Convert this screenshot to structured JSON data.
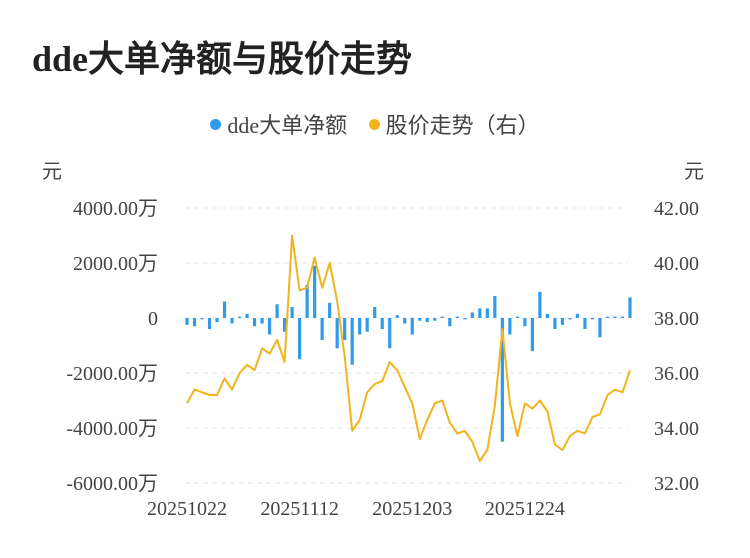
{
  "title": "dde大单净额与股价走势",
  "chart_data": {
    "type": "bar+line",
    "legend": [
      {
        "name": "dde大单净额",
        "color": "#2f9bea"
      },
      {
        "name": "股价走势（右）",
        "color": "#f2b41c"
      }
    ],
    "left_axis": {
      "unit": "元",
      "ticks": [
        "4000.00万",
        "2000.00万",
        "0",
        "-2000.00万",
        "-4000.00万",
        "-6000.00万"
      ],
      "min": -6000,
      "max": 4000
    },
    "right_axis": {
      "unit": "元",
      "ticks": [
        "42.00",
        "40.00",
        "38.00",
        "36.00",
        "34.00",
        "32.00"
      ],
      "min": 32,
      "max": 42
    },
    "x_tick_labels": [
      {
        "label": "20251022",
        "index": 0
      },
      {
        "label": "20251112",
        "index": 15
      },
      {
        "label": "20251203",
        "index": 30
      },
      {
        "label": "20251224",
        "index": 45
      }
    ],
    "series": [
      {
        "name": "dde大单净额",
        "type": "bar",
        "color": "#2f9bea",
        "values": [
          -250,
          -300,
          -50,
          -400,
          -150,
          600,
          -200,
          50,
          150,
          -300,
          -200,
          -600,
          500,
          -500,
          400,
          -1500,
          1200,
          1900,
          -800,
          550,
          -1100,
          -800,
          -1700,
          -600,
          -500,
          400,
          -400,
          -1100,
          100,
          -200,
          -600,
          -100,
          -150,
          -100,
          50,
          -300,
          50,
          -50,
          200,
          350,
          350,
          800,
          -4500,
          -600,
          50,
          -300,
          -1200,
          950,
          150,
          -400,
          -250,
          -50,
          150,
          -400,
          -50,
          -700,
          50,
          50,
          50,
          750
        ]
      },
      {
        "name": "股价走势（右）",
        "type": "line",
        "color": "#f2b41c",
        "values": [
          34.9,
          35.4,
          35.3,
          35.2,
          35.2,
          35.8,
          35.4,
          36.0,
          36.3,
          36.1,
          36.9,
          36.7,
          37.2,
          36.4,
          41.0,
          39.0,
          39.1,
          40.2,
          39.1,
          40.0,
          38.6,
          36.6,
          33.9,
          34.3,
          35.3,
          35.6,
          35.7,
          36.4,
          36.1,
          35.5,
          34.9,
          33.6,
          34.3,
          34.9,
          35.0,
          34.2,
          33.8,
          33.9,
          33.5,
          32.8,
          33.2,
          34.8,
          37.6,
          34.9,
          33.7,
          34.9,
          34.7,
          35.0,
          34.6,
          33.4,
          33.2,
          33.7,
          33.9,
          33.8,
          34.4,
          34.5,
          35.2,
          35.4,
          35.3,
          36.1
        ]
      }
    ]
  }
}
